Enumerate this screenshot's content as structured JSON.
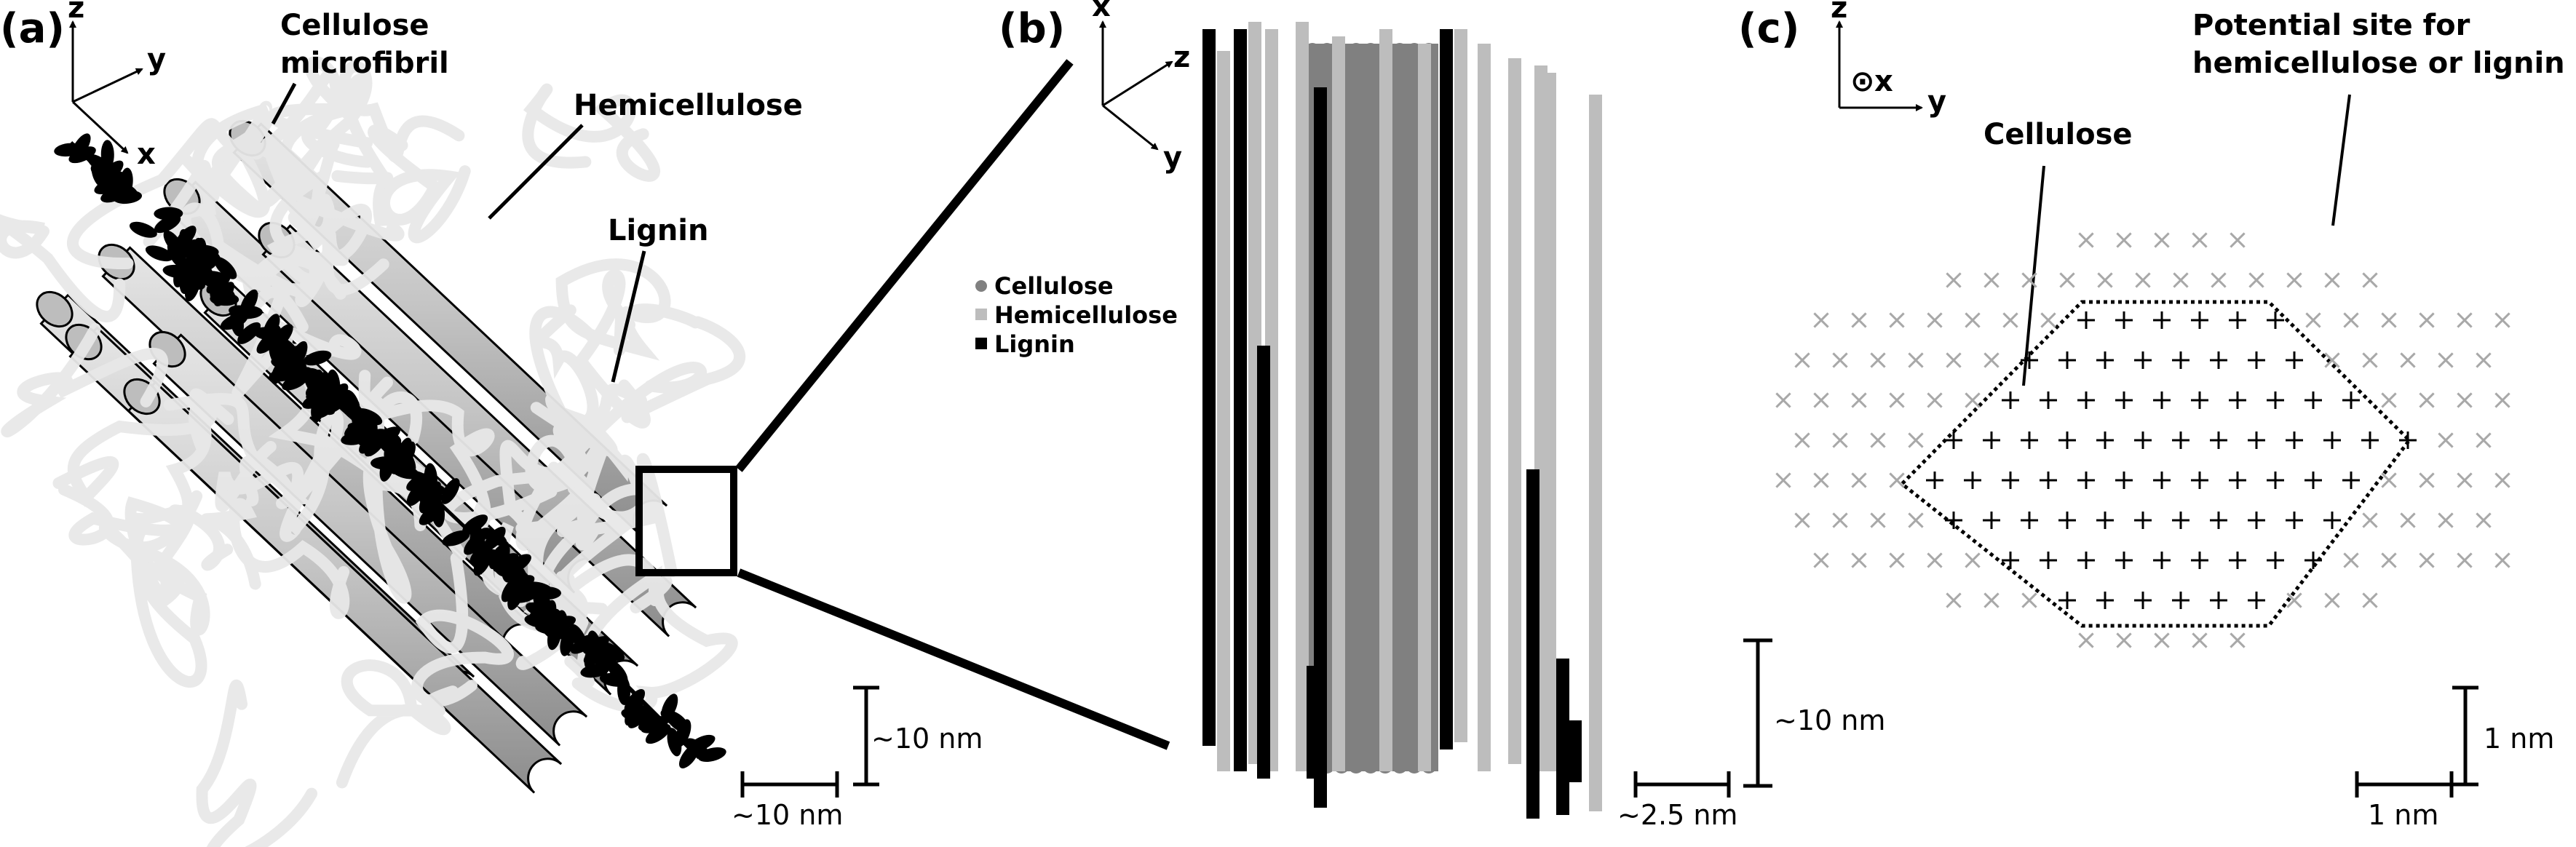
{
  "panels": {
    "a": {
      "label": "(a)",
      "axes": {
        "z": "z",
        "y": "y",
        "x": "x"
      },
      "labels": {
        "cellulose_line1": "Cellulose",
        "cellulose_line2": "microfibril",
        "hemicellulose": "Hemicellulose",
        "lignin": "Lignin"
      },
      "scale_vertical": "~10 nm",
      "scale_horizontal": "~10 nm"
    },
    "b": {
      "label": "(b)",
      "axes": {
        "x": "x",
        "z": "z",
        "y": "y"
      },
      "legend": [
        {
          "name": "Cellulose",
          "color": "#808080",
          "marker": "circle"
        },
        {
          "name": "Hemicellulose",
          "color": "#bdbdbd",
          "marker": "square"
        },
        {
          "name": "Lignin",
          "color": "#000000",
          "marker": "square"
        }
      ],
      "scale_vertical": "~10 nm",
      "scale_horizontal": "~2.5 nm"
    },
    "c": {
      "label": "(c)",
      "axes": {
        "z": "z",
        "x": "x",
        "y": "y",
        "out_of_plane_symbol": "⊙"
      },
      "labels": {
        "potential_line1": "Potential site for",
        "potential_line2": "hemicellulose or lignin",
        "cellulose": "Cellulose"
      },
      "scale_vertical": "1 nm",
      "scale_horizontal": "1 nm"
    }
  },
  "colors": {
    "cellulose": "#808080",
    "hemicellulose": "#bdbdbd",
    "lignin": "#000000",
    "potential_site": "#a8a8a8",
    "cellulose_site": "#000000"
  }
}
